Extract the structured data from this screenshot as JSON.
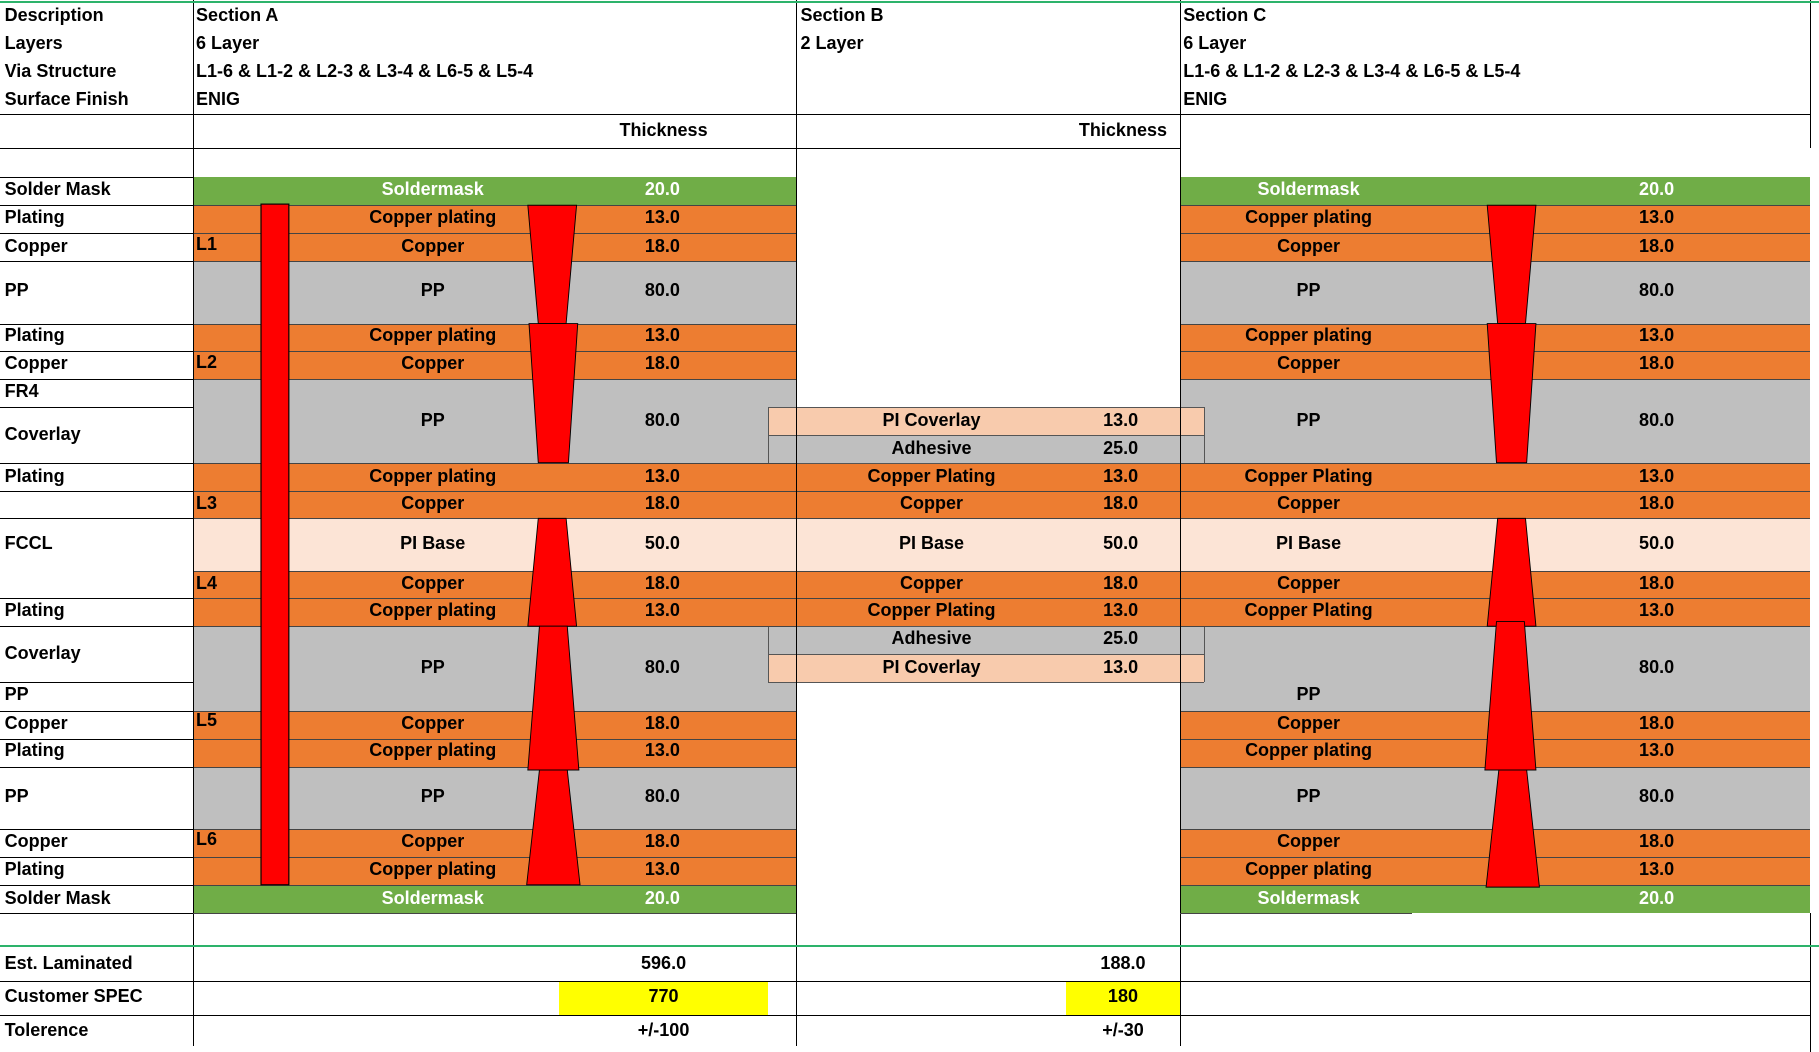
{
  "colors": {
    "soldermask": "#70ad47",
    "copper": "#ed7d31",
    "pp": "#bfbfbf",
    "pi_base": "#fce4d6",
    "pi_coverlay": "#f8cbad",
    "via": "#ff0000",
    "spec": "#ffff00",
    "grid": "#000000",
    "sheet_border": "#2db36b"
  },
  "header": {
    "rows": [
      "Description",
      "Layers",
      "Via Structure",
      "Surface Finish"
    ],
    "section_a": {
      "name": "Section A",
      "layers": "6 Layer",
      "via": "L1-6 & L1-2 & L2-3 & L3-4 & L6-5 & L5-4",
      "finish": "ENIG"
    },
    "section_b": {
      "name": "Section B",
      "layers": "2 Layer"
    },
    "section_c": {
      "name": "Section C",
      "layers": "6 Layer",
      "via": "L1-6 & L1-2 & L2-3 & L3-4 & L6-5 & L5-4",
      "finish": "ENIG"
    },
    "thickness_a": "Thickness",
    "thickness_b": "Thickness"
  },
  "labels": {
    "solder_mask_top": "Solder Mask",
    "plating1": "Plating",
    "copper1": "Copper",
    "pp1": "PP",
    "plating2": "Plating",
    "copper2": "Copper",
    "fr4": "FR4",
    "coverlay1": "Coverlay",
    "plating3": "Plating",
    "fccl": "FCCL",
    "plating4": "Plating",
    "coverlay2": "Coverlay",
    "pp2": "PP",
    "copper5": "Copper",
    "plating5": "Plating",
    "pp3": "PP",
    "copper6": "Copper",
    "plating6": "Plating",
    "solder_mask_bot": "Solder Mask"
  },
  "layer_marks": {
    "l1": "L1",
    "l2": "L2",
    "l3": "L3",
    "l4": "L4",
    "l5": "L5",
    "l6": "L6"
  },
  "stack": {
    "soldermask": "Soldermask",
    "copper_plating": "Copper plating",
    "copper": "Copper",
    "pp": "PP",
    "copper_plating_cap": "Copper Plating",
    "pi_base": "PI Base",
    "pi_coverlay": "PI Coverlay",
    "adhesive": "Adhesive",
    "v_soldermask": "20.0",
    "v_plating": "13.0",
    "v_copper": "18.0",
    "v_pp": "80.0",
    "v_pi_base": "50.0",
    "v_pi_coverlay": "13.0",
    "v_adhesive": "25.0"
  },
  "summary": {
    "est_label": "Est. Laminated",
    "spec_label": "Customer SPEC",
    "tol_label": "Tolerence",
    "a_est": "596.0",
    "a_spec": "770",
    "a_tol": "+/-100",
    "b_est": "188.0",
    "b_spec": "180",
    "b_tol": "+/-30"
  }
}
